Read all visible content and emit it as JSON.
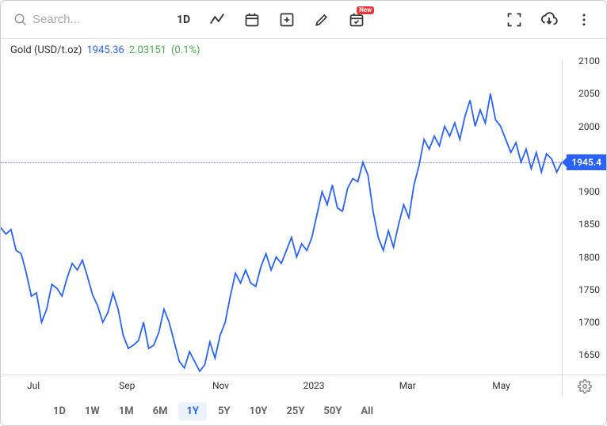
{
  "toolbar": {
    "search_placeholder": "Search...",
    "range_label": "1D",
    "new_badge": "New"
  },
  "header": {
    "symbol": "Gold (USD/t.oz)",
    "price": "1945.36",
    "change_abs": "2.03151",
    "change_pct": "(0.1%)"
  },
  "chart": {
    "type": "line",
    "line_color": "#2962ff",
    "line_width": 1.8,
    "background_color": "#ffffff",
    "grid_color": "#e8e8e8",
    "ylim": [
      1620,
      2100
    ],
    "yticks": [
      1650,
      1700,
      1750,
      1800,
      1850,
      1900,
      1945.4,
      2000,
      2050,
      2100
    ],
    "ytick_labels": [
      "1650",
      "1700",
      "1750",
      "1800",
      "1850",
      "1900",
      "1945.4",
      "2000",
      "2050",
      "2100"
    ],
    "current_price": 1945.4,
    "current_price_label": "1945.4",
    "xticks": [
      "Jul",
      "Sep",
      "Nov",
      "2023",
      "Mar",
      "May"
    ],
    "xtick_positions": [
      0.058,
      0.225,
      0.392,
      0.558,
      0.725,
      0.892
    ],
    "series": [
      1845,
      1835,
      1842,
      1810,
      1805,
      1775,
      1740,
      1745,
      1700,
      1720,
      1758,
      1752,
      1740,
      1768,
      1790,
      1780,
      1795,
      1770,
      1742,
      1725,
      1700,
      1715,
      1745,
      1720,
      1680,
      1660,
      1665,
      1672,
      1700,
      1660,
      1665,
      1685,
      1720,
      1700,
      1670,
      1640,
      1630,
      1655,
      1640,
      1625,
      1635,
      1670,
      1645,
      1680,
      1700,
      1740,
      1775,
      1760,
      1780,
      1760,
      1755,
      1785,
      1805,
      1780,
      1800,
      1790,
      1810,
      1830,
      1800,
      1820,
      1810,
      1830,
      1865,
      1900,
      1880,
      1910,
      1875,
      1870,
      1905,
      1920,
      1915,
      1945,
      1925,
      1870,
      1830,
      1810,
      1840,
      1815,
      1850,
      1880,
      1860,
      1910,
      1940,
      1980,
      1965,
      1985,
      1970,
      2000,
      1985,
      2005,
      1980,
      2015,
      2040,
      2000,
      2025,
      2005,
      2050,
      2010,
      2000,
      1980,
      1960,
      1975,
      1945,
      1965,
      1935,
      1960,
      1930,
      1958,
      1950,
      1930,
      1945
    ]
  },
  "ranges": {
    "options": [
      "1D",
      "1W",
      "1M",
      "6M",
      "1Y",
      "5Y",
      "10Y",
      "25Y",
      "50Y",
      "All"
    ],
    "active": "1Y"
  },
  "colors": {
    "accent": "#2962ff",
    "positive": "#4caf50",
    "badge": "#e53935",
    "text": "#333333",
    "muted": "#888888"
  }
}
